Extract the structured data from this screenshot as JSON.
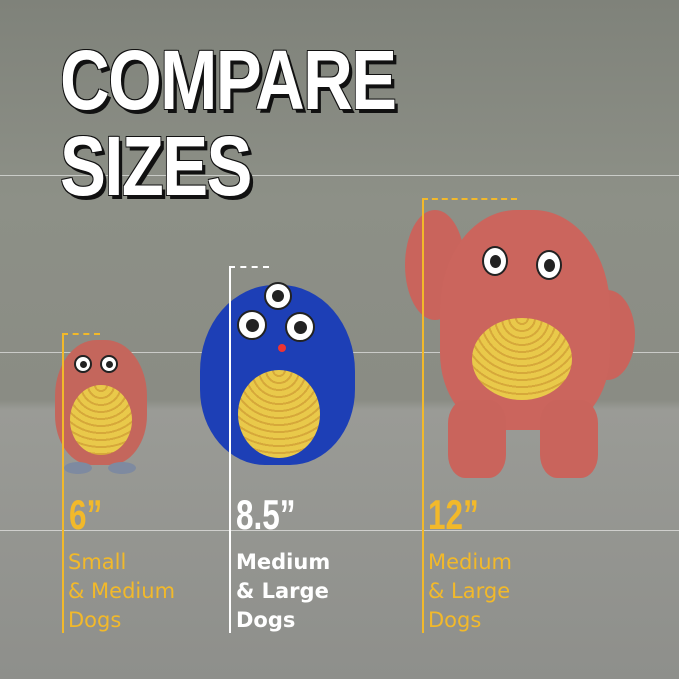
{
  "title": {
    "line1": "COMPARE",
    "line2": "SIZES"
  },
  "colors": {
    "accent": "#f2b92a",
    "white": "#ffffff",
    "red_toy": "#c9645c",
    "blue_toy": "#1c3fb8"
  },
  "sizes": [
    {
      "size": "6”",
      "lines": [
        "Small",
        "& Medium",
        "Dogs"
      ],
      "color": "#f2b92a"
    },
    {
      "size": "8.5”",
      "lines": [
        "Medium",
        "& Large",
        "Dogs"
      ],
      "color": "#ffffff"
    },
    {
      "size": "12”",
      "lines": [
        "Medium",
        "& Large",
        "Dogs"
      ],
      "color": "#f2b92a"
    }
  ]
}
